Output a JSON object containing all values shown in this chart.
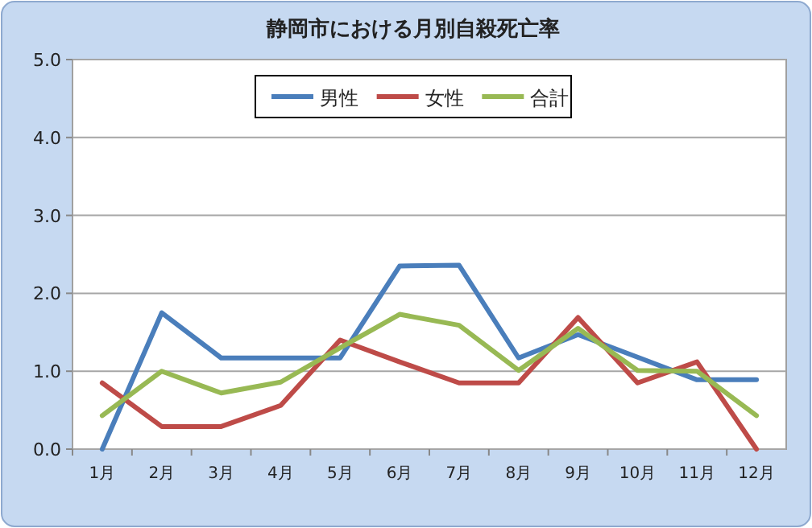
{
  "chart_data": {
    "type": "line",
    "title": "静岡市における月別自殺死亡率",
    "categories": [
      "1月",
      "2月",
      "3月",
      "4月",
      "5月",
      "6月",
      "7月",
      "8月",
      "9月",
      "10月",
      "11月",
      "12月"
    ],
    "series": [
      {
        "name": "男性",
        "color": "#4a7ebb",
        "values": [
          0,
          1.75,
          1.17,
          1.17,
          1.17,
          2.35,
          2.36,
          1.17,
          1.47,
          1.18,
          0.89,
          0.89
        ]
      },
      {
        "name": "女性",
        "color": "#be4b48",
        "values": [
          0.85,
          0.29,
          0.29,
          0.56,
          1.4,
          1.12,
          0.85,
          0.85,
          1.69,
          0.85,
          1.12,
          0
        ]
      },
      {
        "name": "合計",
        "color": "#98b954",
        "values": [
          0.43,
          1.0,
          0.72,
          0.86,
          1.3,
          1.73,
          1.59,
          1.01,
          1.55,
          1.01,
          1.0,
          0.43
        ]
      }
    ],
    "ylim": [
      0,
      5
    ],
    "yticks": [
      {
        "value": 0,
        "label": "0.0"
      },
      {
        "value": 1,
        "label": "1.0"
      },
      {
        "value": 2,
        "label": "2.0"
      },
      {
        "value": 3,
        "label": "3.0"
      },
      {
        "value": 4,
        "label": "4.0"
      },
      {
        "value": 5,
        "label": "5.0"
      }
    ],
    "grid": "y",
    "legend": "top",
    "marker": "none",
    "line_style": "solid"
  }
}
